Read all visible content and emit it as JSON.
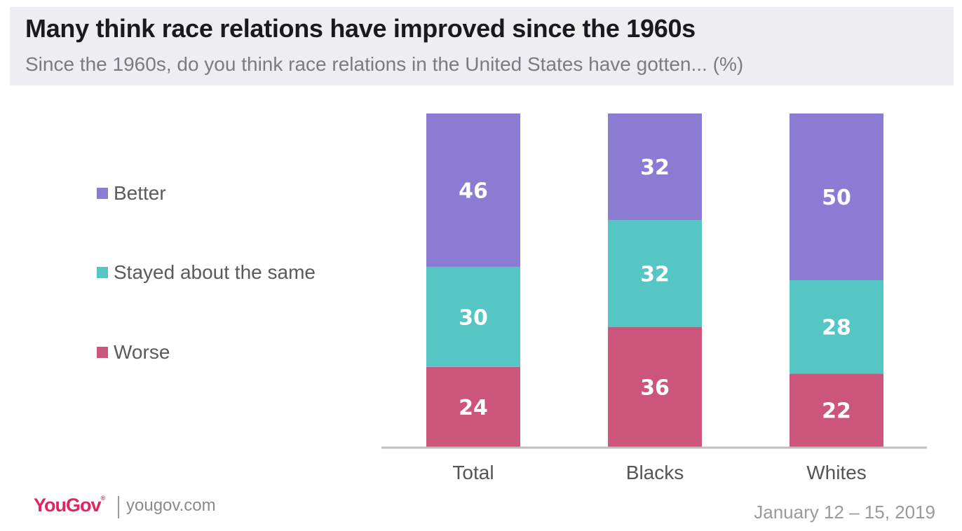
{
  "header": {
    "title": "Many think race relations have improved since the 1960s",
    "subtitle": "Since the 1960s, do you think race relations in the United States have gotten... (%)"
  },
  "legend": [
    {
      "label": "Better",
      "color": "#8b7bd3"
    },
    {
      "label": "Stayed about the same",
      "color": "#56c6c4"
    },
    {
      "label": "Worse",
      "color": "#cc557c"
    }
  ],
  "chart_data": {
    "type": "bar",
    "stacked": true,
    "categories": [
      "Total",
      "Blacks",
      "Whites"
    ],
    "series": [
      {
        "name": "Worse",
        "values": [
          24,
          36,
          22
        ],
        "color": "#cc557c"
      },
      {
        "name": "Stayed about the same",
        "values": [
          30,
          32,
          28
        ],
        "color": "#56c6c4"
      },
      {
        "name": "Better",
        "values": [
          46,
          32,
          50
        ],
        "color": "#8b7bd3"
      }
    ],
    "ylim": [
      0,
      100
    ],
    "title": "Many think race relations have improved since the 1960s",
    "subtitle": "Since the 1960s, do you think race relations in the United States have gotten... (%)",
    "grid": false,
    "legend_position": "left"
  },
  "footer": {
    "logo": "YouGov",
    "site": "yougov.com",
    "date": "January 12 – 15, 2019"
  }
}
